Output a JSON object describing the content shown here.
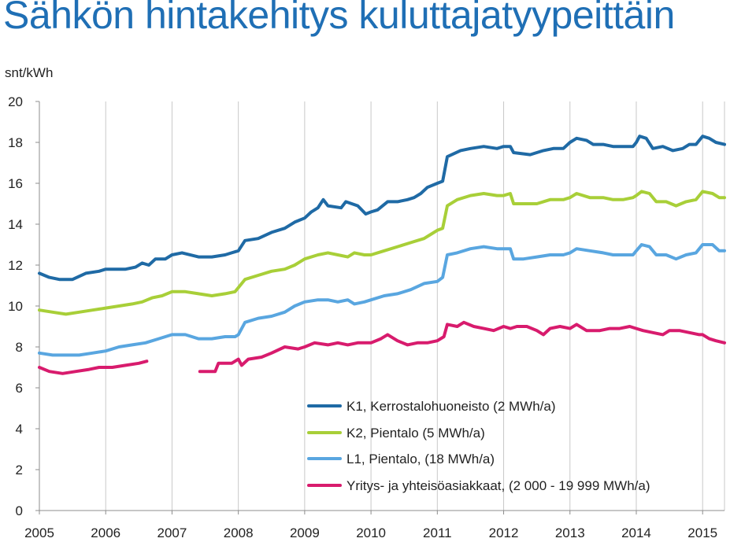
{
  "title": "Sähkön hintakehitys kuluttajatyypeittäin",
  "chart_data": {
    "type": "line",
    "title": "Sähkön hintakehitys kuluttajatyypeittäin",
    "ylabel": "snt/kWh",
    "xlabel": "",
    "ylim": [
      0,
      20
    ],
    "yticks": [
      "0",
      "2",
      "4",
      "6",
      "8",
      "10",
      "12",
      "14",
      "16",
      "18",
      "20"
    ],
    "xlim": [
      2005,
      2015.33
    ],
    "xticks": [
      "2005",
      "2006",
      "2007",
      "2008",
      "2009",
      "2010",
      "2011",
      "2012",
      "2013",
      "2014",
      "2015"
    ],
    "grid": "vertical",
    "legend": "bottom-right",
    "series": [
      {
        "name": "K1, Kerrostalohuoneisto (2 MWh/a)",
        "color": "#1f6aa5",
        "points": [
          [
            2005.0,
            11.6
          ],
          [
            2005.15,
            11.4
          ],
          [
            2005.3,
            11.3
          ],
          [
            2005.5,
            11.3
          ],
          [
            2005.7,
            11.6
          ],
          [
            2005.9,
            11.7
          ],
          [
            2006.0,
            11.8
          ],
          [
            2006.3,
            11.8
          ],
          [
            2006.45,
            11.9
          ],
          [
            2006.55,
            12.1
          ],
          [
            2006.65,
            12.0
          ],
          [
            2006.75,
            12.3
          ],
          [
            2006.9,
            12.3
          ],
          [
            2007.0,
            12.5
          ],
          [
            2007.15,
            12.6
          ],
          [
            2007.4,
            12.4
          ],
          [
            2007.6,
            12.4
          ],
          [
            2007.8,
            12.5
          ],
          [
            2007.9,
            12.6
          ],
          [
            2008.0,
            12.7
          ],
          [
            2008.1,
            13.2
          ],
          [
            2008.3,
            13.3
          ],
          [
            2008.5,
            13.6
          ],
          [
            2008.7,
            13.8
          ],
          [
            2008.85,
            14.1
          ],
          [
            2009.0,
            14.3
          ],
          [
            2009.1,
            14.6
          ],
          [
            2009.2,
            14.8
          ],
          [
            2009.28,
            15.2
          ],
          [
            2009.35,
            14.9
          ],
          [
            2009.55,
            14.8
          ],
          [
            2009.62,
            15.1
          ],
          [
            2009.8,
            14.9
          ],
          [
            2009.92,
            14.5
          ],
          [
            2010.0,
            14.6
          ],
          [
            2010.1,
            14.7
          ],
          [
            2010.25,
            15.1
          ],
          [
            2010.4,
            15.1
          ],
          [
            2010.55,
            15.2
          ],
          [
            2010.65,
            15.3
          ],
          [
            2010.75,
            15.5
          ],
          [
            2010.85,
            15.8
          ],
          [
            2011.0,
            16.0
          ],
          [
            2011.08,
            16.1
          ],
          [
            2011.15,
            17.3
          ],
          [
            2011.35,
            17.6
          ],
          [
            2011.5,
            17.7
          ],
          [
            2011.7,
            17.8
          ],
          [
            2011.9,
            17.7
          ],
          [
            2012.0,
            17.8
          ],
          [
            2012.1,
            17.8
          ],
          [
            2012.15,
            17.5
          ],
          [
            2012.4,
            17.4
          ],
          [
            2012.6,
            17.6
          ],
          [
            2012.75,
            17.7
          ],
          [
            2012.9,
            17.7
          ],
          [
            2013.0,
            18.0
          ],
          [
            2013.1,
            18.2
          ],
          [
            2013.25,
            18.1
          ],
          [
            2013.35,
            17.9
          ],
          [
            2013.5,
            17.9
          ],
          [
            2013.65,
            17.8
          ],
          [
            2013.8,
            17.8
          ],
          [
            2013.95,
            17.8
          ],
          [
            2014.0,
            18.0
          ],
          [
            2014.05,
            18.3
          ],
          [
            2014.15,
            18.2
          ],
          [
            2014.25,
            17.7
          ],
          [
            2014.4,
            17.8
          ],
          [
            2014.55,
            17.6
          ],
          [
            2014.7,
            17.7
          ],
          [
            2014.8,
            17.9
          ],
          [
            2014.9,
            17.9
          ],
          [
            2015.0,
            18.3
          ],
          [
            2015.1,
            18.2
          ],
          [
            2015.2,
            18.0
          ],
          [
            2015.33,
            17.9
          ]
        ]
      },
      {
        "name": "K2, Pientalo  (5 MWh/a)",
        "color": "#a8cf38",
        "points": [
          [
            2005.0,
            9.8
          ],
          [
            2005.2,
            9.7
          ],
          [
            2005.4,
            9.6
          ],
          [
            2005.6,
            9.7
          ],
          [
            2005.8,
            9.8
          ],
          [
            2006.0,
            9.9
          ],
          [
            2006.2,
            10.0
          ],
          [
            2006.4,
            10.1
          ],
          [
            2006.55,
            10.2
          ],
          [
            2006.7,
            10.4
          ],
          [
            2006.85,
            10.5
          ],
          [
            2007.0,
            10.7
          ],
          [
            2007.2,
            10.7
          ],
          [
            2007.4,
            10.6
          ],
          [
            2007.6,
            10.5
          ],
          [
            2007.8,
            10.6
          ],
          [
            2007.95,
            10.7
          ],
          [
            2008.0,
            10.9
          ],
          [
            2008.1,
            11.3
          ],
          [
            2008.3,
            11.5
          ],
          [
            2008.5,
            11.7
          ],
          [
            2008.7,
            11.8
          ],
          [
            2008.85,
            12.0
          ],
          [
            2009.0,
            12.3
          ],
          [
            2009.2,
            12.5
          ],
          [
            2009.35,
            12.6
          ],
          [
            2009.5,
            12.5
          ],
          [
            2009.65,
            12.4
          ],
          [
            2009.75,
            12.6
          ],
          [
            2009.9,
            12.5
          ],
          [
            2010.0,
            12.5
          ],
          [
            2010.2,
            12.7
          ],
          [
            2010.4,
            12.9
          ],
          [
            2010.6,
            13.1
          ],
          [
            2010.8,
            13.3
          ],
          [
            2010.9,
            13.5
          ],
          [
            2011.0,
            13.7
          ],
          [
            2011.08,
            13.8
          ],
          [
            2011.15,
            14.9
          ],
          [
            2011.3,
            15.2
          ],
          [
            2011.5,
            15.4
          ],
          [
            2011.7,
            15.5
          ],
          [
            2011.9,
            15.4
          ],
          [
            2012.0,
            15.4
          ],
          [
            2012.1,
            15.5
          ],
          [
            2012.15,
            15.0
          ],
          [
            2012.3,
            15.0
          ],
          [
            2012.5,
            15.0
          ],
          [
            2012.7,
            15.2
          ],
          [
            2012.9,
            15.2
          ],
          [
            2013.0,
            15.3
          ],
          [
            2013.1,
            15.5
          ],
          [
            2013.3,
            15.3
          ],
          [
            2013.5,
            15.3
          ],
          [
            2013.65,
            15.2
          ],
          [
            2013.8,
            15.2
          ],
          [
            2013.95,
            15.3
          ],
          [
            2014.0,
            15.4
          ],
          [
            2014.08,
            15.6
          ],
          [
            2014.2,
            15.5
          ],
          [
            2014.3,
            15.1
          ],
          [
            2014.45,
            15.1
          ],
          [
            2014.6,
            14.9
          ],
          [
            2014.75,
            15.1
          ],
          [
            2014.9,
            15.2
          ],
          [
            2015.0,
            15.6
          ],
          [
            2015.15,
            15.5
          ],
          [
            2015.25,
            15.3
          ],
          [
            2015.33,
            15.3
          ]
        ]
      },
      {
        "name": "L1, Pientalo, (18 MWh/a)",
        "color": "#59a6e0",
        "points": [
          [
            2005.0,
            7.7
          ],
          [
            2005.2,
            7.6
          ],
          [
            2005.4,
            7.6
          ],
          [
            2005.6,
            7.6
          ],
          [
            2005.8,
            7.7
          ],
          [
            2006.0,
            7.8
          ],
          [
            2006.2,
            8.0
          ],
          [
            2006.4,
            8.1
          ],
          [
            2006.6,
            8.2
          ],
          [
            2006.8,
            8.4
          ],
          [
            2007.0,
            8.6
          ],
          [
            2007.2,
            8.6
          ],
          [
            2007.4,
            8.4
          ],
          [
            2007.6,
            8.4
          ],
          [
            2007.8,
            8.5
          ],
          [
            2007.95,
            8.5
          ],
          [
            2008.0,
            8.6
          ],
          [
            2008.1,
            9.2
          ],
          [
            2008.3,
            9.4
          ],
          [
            2008.5,
            9.5
          ],
          [
            2008.7,
            9.7
          ],
          [
            2008.85,
            10.0
          ],
          [
            2009.0,
            10.2
          ],
          [
            2009.2,
            10.3
          ],
          [
            2009.35,
            10.3
          ],
          [
            2009.5,
            10.2
          ],
          [
            2009.65,
            10.3
          ],
          [
            2009.75,
            10.1
          ],
          [
            2009.9,
            10.2
          ],
          [
            2010.0,
            10.3
          ],
          [
            2010.2,
            10.5
          ],
          [
            2010.4,
            10.6
          ],
          [
            2010.6,
            10.8
          ],
          [
            2010.8,
            11.1
          ],
          [
            2011.0,
            11.2
          ],
          [
            2011.08,
            11.4
          ],
          [
            2011.15,
            12.5
          ],
          [
            2011.3,
            12.6
          ],
          [
            2011.5,
            12.8
          ],
          [
            2011.7,
            12.9
          ],
          [
            2011.9,
            12.8
          ],
          [
            2012.0,
            12.8
          ],
          [
            2012.1,
            12.8
          ],
          [
            2012.15,
            12.3
          ],
          [
            2012.3,
            12.3
          ],
          [
            2012.5,
            12.4
          ],
          [
            2012.7,
            12.5
          ],
          [
            2012.9,
            12.5
          ],
          [
            2013.0,
            12.6
          ],
          [
            2013.1,
            12.8
          ],
          [
            2013.3,
            12.7
          ],
          [
            2013.5,
            12.6
          ],
          [
            2013.65,
            12.5
          ],
          [
            2013.8,
            12.5
          ],
          [
            2013.95,
            12.5
          ],
          [
            2014.0,
            12.7
          ],
          [
            2014.08,
            13.0
          ],
          [
            2014.2,
            12.9
          ],
          [
            2014.3,
            12.5
          ],
          [
            2014.45,
            12.5
          ],
          [
            2014.6,
            12.3
          ],
          [
            2014.75,
            12.5
          ],
          [
            2014.9,
            12.6
          ],
          [
            2015.0,
            13.0
          ],
          [
            2015.15,
            13.0
          ],
          [
            2015.25,
            12.7
          ],
          [
            2015.33,
            12.7
          ]
        ]
      },
      {
        "name": "Yritys- ja yhteisöasiakkaat, (2 000 - 19 999 MWh/a)",
        "color": "#d81b6d",
        "points": [
          [
            2005.0,
            7.0
          ],
          [
            2005.15,
            6.8
          ],
          [
            2005.35,
            6.7
          ],
          [
            2005.55,
            6.8
          ],
          [
            2005.75,
            6.9
          ],
          [
            2005.9,
            7.0
          ],
          [
            2006.1,
            7.0
          ],
          [
            2006.3,
            7.1
          ],
          [
            2006.5,
            7.2
          ],
          [
            2006.62,
            7.3
          ],
          null,
          [
            2007.42,
            6.8
          ],
          [
            2007.65,
            6.8
          ],
          [
            2007.7,
            7.2
          ],
          [
            2007.9,
            7.2
          ],
          [
            2008.0,
            7.4
          ],
          [
            2008.05,
            7.1
          ],
          [
            2008.15,
            7.4
          ],
          [
            2008.35,
            7.5
          ],
          [
            2008.5,
            7.7
          ],
          [
            2008.7,
            8.0
          ],
          [
            2008.9,
            7.9
          ],
          [
            2009.0,
            8.0
          ],
          [
            2009.15,
            8.2
          ],
          [
            2009.35,
            8.1
          ],
          [
            2009.5,
            8.2
          ],
          [
            2009.65,
            8.1
          ],
          [
            2009.8,
            8.2
          ],
          [
            2010.0,
            8.2
          ],
          [
            2010.15,
            8.4
          ],
          [
            2010.25,
            8.6
          ],
          [
            2010.4,
            8.3
          ],
          [
            2010.55,
            8.1
          ],
          [
            2010.7,
            8.2
          ],
          [
            2010.85,
            8.2
          ],
          [
            2011.0,
            8.3
          ],
          [
            2011.1,
            8.5
          ],
          [
            2011.15,
            9.1
          ],
          [
            2011.3,
            9.0
          ],
          [
            2011.4,
            9.2
          ],
          [
            2011.55,
            9.0
          ],
          [
            2011.7,
            8.9
          ],
          [
            2011.85,
            8.8
          ],
          [
            2012.0,
            9.0
          ],
          [
            2012.1,
            8.9
          ],
          [
            2012.2,
            9.0
          ],
          [
            2012.35,
            9.0
          ],
          [
            2012.5,
            8.8
          ],
          [
            2012.6,
            8.6
          ],
          [
            2012.7,
            8.9
          ],
          [
            2012.85,
            9.0
          ],
          [
            2013.0,
            8.9
          ],
          [
            2013.1,
            9.1
          ],
          [
            2013.25,
            8.8
          ],
          [
            2013.45,
            8.8
          ],
          [
            2013.6,
            8.9
          ],
          [
            2013.75,
            8.9
          ],
          [
            2013.9,
            9.0
          ],
          [
            2014.0,
            8.9
          ],
          [
            2014.1,
            8.8
          ],
          [
            2014.25,
            8.7
          ],
          [
            2014.4,
            8.6
          ],
          [
            2014.5,
            8.8
          ],
          [
            2014.65,
            8.8
          ],
          [
            2014.8,
            8.7
          ],
          [
            2014.95,
            8.6
          ],
          [
            2015.0,
            8.6
          ],
          [
            2015.1,
            8.4
          ],
          [
            2015.2,
            8.3
          ],
          [
            2015.33,
            8.2
          ]
        ]
      }
    ]
  }
}
